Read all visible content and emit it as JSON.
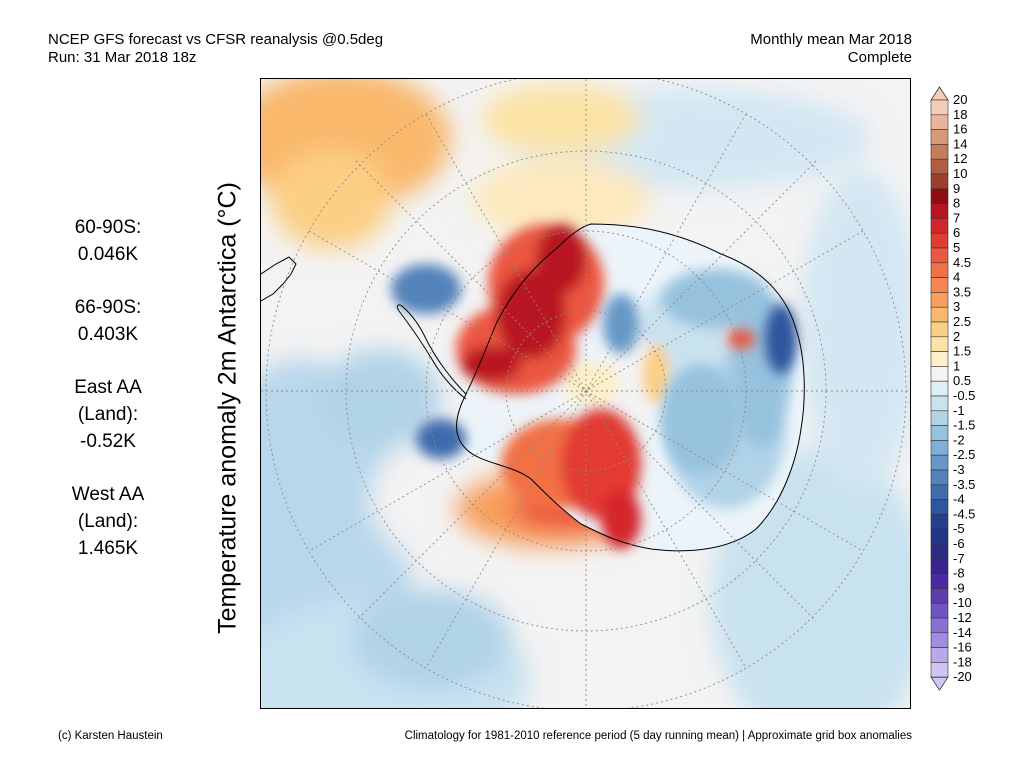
{
  "header": {
    "title_line1": "NCEP GFS forecast vs CFSR reanalysis @0.5deg",
    "title_line2": "Run: 31 Mar 2018 18z",
    "right_line1": "Monthly mean Mar 2018",
    "right_line2": "Complete"
  },
  "ylabel": "Temperature anomaly 2m Antarctica (°C)",
  "stats": [
    {
      "line1": "60-90S:",
      "line2": "",
      "value": "0.046K"
    },
    {
      "line1": "66-90S:",
      "line2": "",
      "value": "0.403K"
    },
    {
      "line1": "East AA",
      "line2": "(Land):",
      "value": "-0.52K"
    },
    {
      "line1": "West AA",
      "line2": "(Land):",
      "value": "1.465K"
    }
  ],
  "colorbar": {
    "labels": [
      "20",
      "18",
      "16",
      "14",
      "12",
      "10",
      "9",
      "8",
      "7",
      "6",
      "5",
      "4.5",
      "4",
      "3.5",
      "3",
      "2.5",
      "2",
      "1.5",
      "1",
      "0.5",
      "-0.5",
      "-1",
      "-1.5",
      "-2",
      "-2.5",
      "-3",
      "-3.5",
      "-4",
      "-4.5",
      "-5",
      "-6",
      "-7",
      "-8",
      "-9",
      "-10",
      "-12",
      "-14",
      "-16",
      "-18",
      "-20"
    ],
    "colors": [
      "#f4cdb8",
      "#e8b49a",
      "#d9987a",
      "#c67b5c",
      "#b05e42",
      "#99402c",
      "#8f0c12",
      "#b81420",
      "#d5252a",
      "#e33b32",
      "#ec573f",
      "#f36f45",
      "#f6864f",
      "#f89f5c",
      "#f9b86c",
      "#fbcf84",
      "#fbe3a4",
      "#fdf0c8",
      "#f4f4f4",
      "#e0eef7",
      "#c9e2f0",
      "#b1d3e8",
      "#97c2de",
      "#7eafd4",
      "#6699c8",
      "#5283bb",
      "#3e6cad",
      "#2f559e",
      "#22408f",
      "#24348a",
      "#2d2a88",
      "#3b2391",
      "#4a2aa0",
      "#5d3cb2",
      "#7154c4",
      "#8a70d4",
      "#a28ce0",
      "#baa8ea",
      "#d0c4f2"
    ]
  },
  "footer": {
    "left": "(c) Karsten Haustein",
    "right": "Climatology for 1981-2010 reference period (5 day running mean) | Approximate grid box anomalies"
  }
}
